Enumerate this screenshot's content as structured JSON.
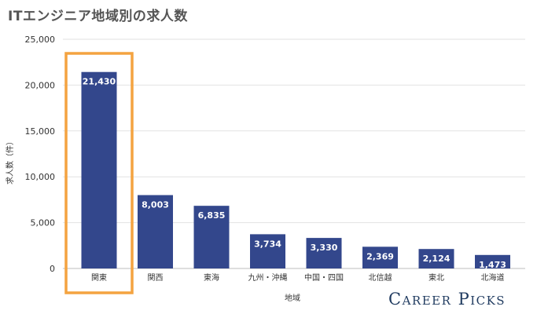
{
  "chart_data": {
    "type": "bar",
    "title": "ITエンジニア地域別の求人数",
    "xlabel": "地域",
    "ylabel": "求人数（件）",
    "categories": [
      "関東",
      "関西",
      "東海",
      "九州・沖縄",
      "中国・四国",
      "北信越",
      "東北",
      "北海道"
    ],
    "values": [
      21430,
      8003,
      6835,
      3734,
      3330,
      2369,
      2124,
      1473
    ],
    "value_labels": [
      "21,430",
      "8,003",
      "6,835",
      "3,734",
      "3,330",
      "2,369",
      "2,124",
      "1,473"
    ],
    "ylim": [
      0,
      25000
    ],
    "yticks": [
      0,
      5000,
      10000,
      15000,
      20000,
      25000
    ],
    "ytick_labels": [
      "0",
      "5,000",
      "10,000",
      "15,000",
      "20,000",
      "25,000"
    ],
    "grid": true,
    "highlighted_category": "関東",
    "colors": {
      "bar": "#33478c",
      "highlight": "#f4a340",
      "grid": "#e2e2e2",
      "text": "#333333",
      "value_label": "#ffffff"
    }
  },
  "brand": {
    "logo_text": "Career Picks"
  }
}
